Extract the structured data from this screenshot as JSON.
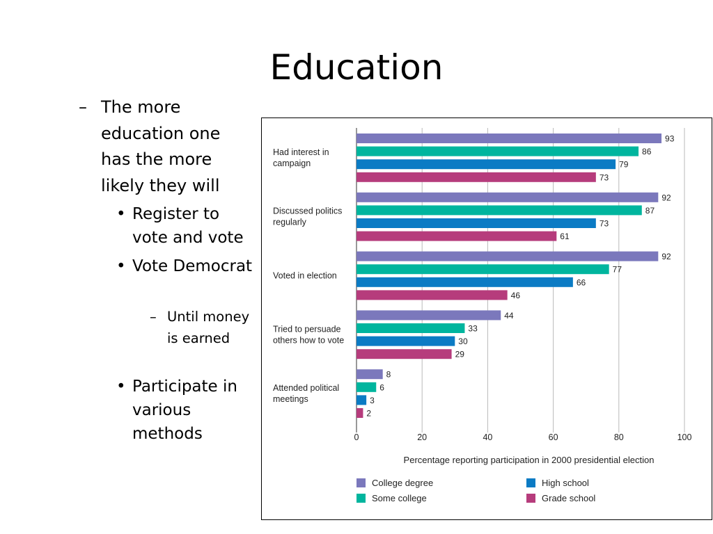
{
  "slide": {
    "title": "Education",
    "bullet_l1": "The more education one has the more likely they will",
    "bullets_l2": [
      "Register to vote and vote",
      "Vote Democrat",
      "Participate in various methods"
    ],
    "bullet_l3": "Until money is earned",
    "marker_dash": "–",
    "marker_dot": "•"
  },
  "chart_data": {
    "type": "bar",
    "orientation": "horizontal",
    "categories": [
      [
        "Had interest in",
        "campaign"
      ],
      [
        "Discussed politics",
        "regularly"
      ],
      [
        "Voted in election"
      ],
      [
        "Tried to persuade",
        "others how to vote"
      ],
      [
        "Attended political",
        "meetings"
      ]
    ],
    "series": [
      {
        "name": "College degree",
        "color": "#7b78bc",
        "values": [
          93,
          92,
          92,
          44,
          8
        ]
      },
      {
        "name": "Some college",
        "color": "#00b59e",
        "values": [
          86,
          87,
          77,
          33,
          6
        ]
      },
      {
        "name": "High school",
        "color": "#0b7bc4",
        "values": [
          79,
          73,
          66,
          30,
          3
        ]
      },
      {
        "name": "Grade school",
        "color": "#b63c7c",
        "values": [
          73,
          61,
          46,
          29,
          2
        ]
      }
    ],
    "xlabel": "Percentage reporting participation in 2000 presidential election",
    "xlim": [
      0,
      100
    ],
    "xticks": [
      0,
      20,
      40,
      60,
      80,
      100
    ],
    "grid": true,
    "legend": "bottom"
  }
}
